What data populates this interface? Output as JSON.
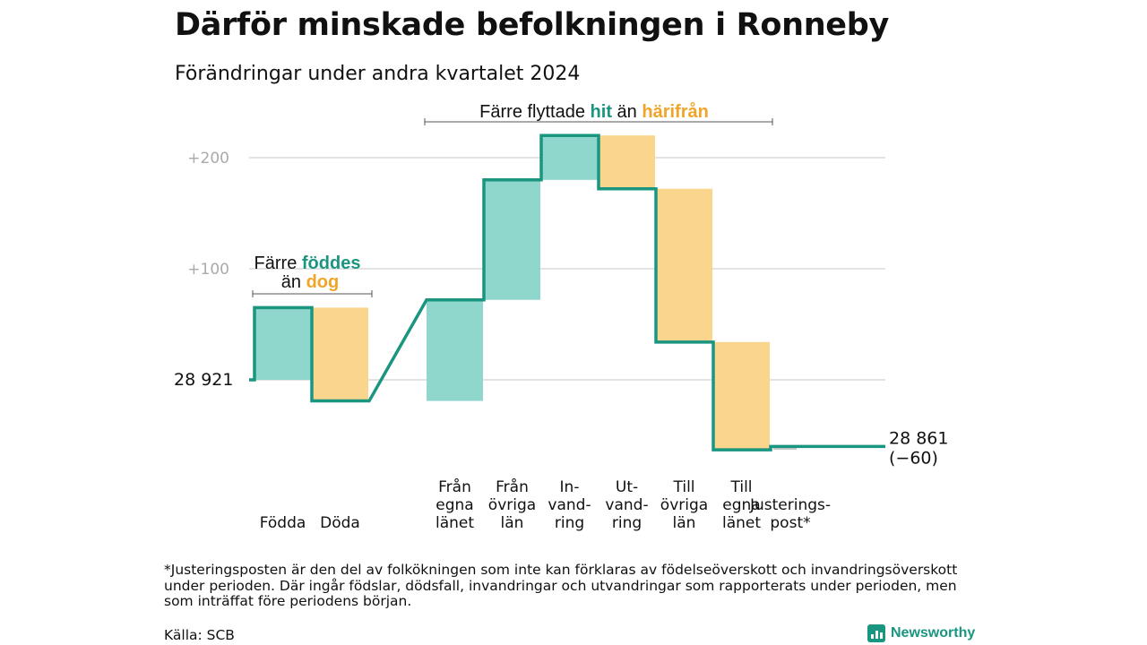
{
  "title": "Därför minskade befolkningen i Ronneby",
  "subtitle": "Förändringar under andra kvartalet 2024",
  "colors": {
    "increase": "#8fd6cc",
    "decrease": "#fad58d",
    "line": "#1a9580",
    "adjustment": "#c8c8c8"
  },
  "annotations": {
    "births": {
      "prefix": "Färre",
      "word1": "föddes",
      "mid": "än",
      "word2": "dog"
    },
    "migration": {
      "prefix": "Färre flyttade",
      "word1": "hit",
      "mid": "än",
      "word2": "härifrån"
    }
  },
  "chart_data": {
    "type": "waterfall",
    "start": {
      "label": "28  921",
      "value": 28921
    },
    "end": {
      "label": "28 861",
      "change_label": "(−60)",
      "value": 28861
    },
    "yticks": [
      {
        "label": "+100",
        "value": 100
      },
      {
        "label": "+200",
        "value": 200
      }
    ],
    "steps": [
      {
        "label": [
          "Födda"
        ],
        "change": 65
      },
      {
        "label": [
          "Döda"
        ],
        "change": -84
      },
      {
        "label": [
          "Från",
          "egna",
          "länet"
        ],
        "change": 91
      },
      {
        "label": [
          "Från",
          "övriga",
          "län"
        ],
        "change": 108
      },
      {
        "label": [
          "In-",
          "vand-",
          "ring"
        ],
        "change": 40
      },
      {
        "label": [
          "Ut-",
          "vand-",
          "ring"
        ],
        "change": -48
      },
      {
        "label": [
          "Till",
          "övriga",
          "län"
        ],
        "change": -138
      },
      {
        "label": [
          "Till",
          "egna",
          "länet"
        ],
        "change": -97
      },
      {
        "label": [
          "Justerings-",
          "post*"
        ],
        "change": 3
      }
    ]
  },
  "footnote": "*Justeringsposten är den del av folkökningen som inte kan förklaras av födelseöverskott och invandringsöverskott under perioden. Där ingår födslar, dödsfall, invandringar och utvandringar som rapporterats under perioden, men som inträffat före periodens början.",
  "source": "Källa: SCB",
  "logo_text": "Newsworthy"
}
